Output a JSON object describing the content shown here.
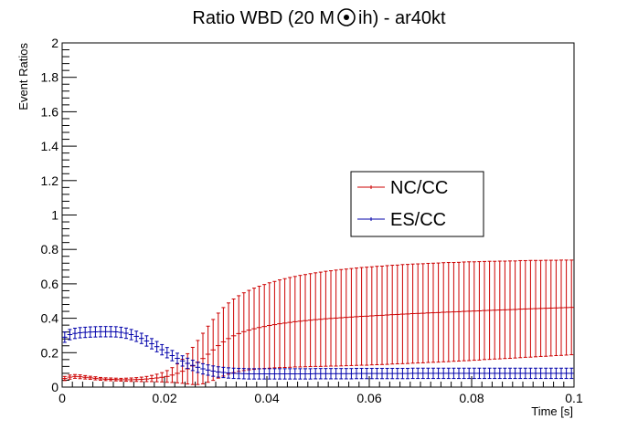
{
  "chart_data": {
    "type": "scatter",
    "title": "Ratio WBD (20 M",
    "title_symbol": "sun-symbol",
    "title_suffix": "ih) - ar40kt",
    "xlabel": "Time [s]",
    "ylabel": "Event Ratios",
    "xlim": [
      0,
      0.1
    ],
    "ylim": [
      0,
      2
    ],
    "x_ticks": [
      "0",
      "0.02",
      "0.04",
      "0.06",
      "0.08",
      "0.1"
    ],
    "y_ticks": [
      "0",
      "0.2",
      "0.4",
      "0.6",
      "0.8",
      "1",
      "1.2",
      "1.4",
      "1.6",
      "1.8",
      "2"
    ],
    "grid": false,
    "legend_position": "center-right",
    "series": [
      {
        "name": "NC/CC",
        "color": "#cc0000",
        "x": [
          0.0005,
          0.0015,
          0.0025,
          0.0035,
          0.0045,
          0.0055,
          0.0065,
          0.0075,
          0.0085,
          0.0095,
          0.0105,
          0.0115,
          0.0125,
          0.0135,
          0.0145,
          0.0155,
          0.0165,
          0.0175,
          0.0185,
          0.0195,
          0.0205,
          0.0215,
          0.0225,
          0.0235,
          0.0245,
          0.0255,
          0.0265,
          0.0275,
          0.0285,
          0.0295,
          0.0305,
          0.0315,
          0.0325,
          0.0335,
          0.0345,
          0.0355,
          0.0365,
          0.0375,
          0.0385,
          0.0395,
          0.0405,
          0.0415,
          0.0425,
          0.0435,
          0.0445,
          0.0455,
          0.0465,
          0.0475,
          0.0485,
          0.0495,
          0.0505,
          0.0515,
          0.0525,
          0.0535,
          0.0545,
          0.0555,
          0.0565,
          0.0575,
          0.0585,
          0.0595,
          0.0605,
          0.0615,
          0.0625,
          0.0635,
          0.0645,
          0.0655,
          0.0665,
          0.0675,
          0.0685,
          0.0695,
          0.0705,
          0.0715,
          0.0725,
          0.0735,
          0.0745,
          0.0755,
          0.0765,
          0.0775,
          0.0785,
          0.0795,
          0.0805,
          0.0815,
          0.0825,
          0.0835,
          0.0845,
          0.0855,
          0.0865,
          0.0875,
          0.0885,
          0.0895,
          0.0905,
          0.0915,
          0.0925,
          0.0935,
          0.0945,
          0.0955,
          0.0965,
          0.0975,
          0.0985,
          0.0995
        ],
        "y": [
          0.05,
          0.058,
          0.062,
          0.06,
          0.057,
          0.054,
          0.051,
          0.048,
          0.046,
          0.045,
          0.044,
          0.043,
          0.043,
          0.043,
          0.044,
          0.045,
          0.047,
          0.05,
          0.053,
          0.057,
          0.062,
          0.07,
          0.08,
          0.092,
          0.106,
          0.123,
          0.143,
          0.166,
          0.191,
          0.216,
          0.241,
          0.263,
          0.282,
          0.298,
          0.311,
          0.322,
          0.331,
          0.339,
          0.346,
          0.352,
          0.358,
          0.363,
          0.368,
          0.372,
          0.376,
          0.38,
          0.383,
          0.386,
          0.389,
          0.392,
          0.394,
          0.397,
          0.399,
          0.401,
          0.403,
          0.405,
          0.407,
          0.409,
          0.411,
          0.412,
          0.414,
          0.416,
          0.417,
          0.419,
          0.421,
          0.422,
          0.424,
          0.425,
          0.427,
          0.428,
          0.429,
          0.431,
          0.432,
          0.433,
          0.435,
          0.436,
          0.437,
          0.438,
          0.44,
          0.441,
          0.442,
          0.443,
          0.445,
          0.446,
          0.447,
          0.448,
          0.449,
          0.45,
          0.451,
          0.453,
          0.454,
          0.455,
          0.456,
          0.457,
          0.458,
          0.459,
          0.46,
          0.461,
          0.462,
          0.463
        ],
        "err": [
          0.012,
          0.012,
          0.011,
          0.011,
          0.01,
          0.009,
          0.009,
          0.008,
          0.008,
          0.008,
          0.008,
          0.008,
          0.009,
          0.01,
          0.011,
          0.013,
          0.015,
          0.018,
          0.022,
          0.027,
          0.034,
          0.043,
          0.055,
          0.07,
          0.088,
          0.108,
          0.128,
          0.147,
          0.163,
          0.177,
          0.189,
          0.199,
          0.207,
          0.214,
          0.22,
          0.226,
          0.231,
          0.236,
          0.24,
          0.244,
          0.248,
          0.251,
          0.255,
          0.258,
          0.261,
          0.263,
          0.266,
          0.268,
          0.27,
          0.272,
          0.274,
          0.276,
          0.277,
          0.279,
          0.28,
          0.281,
          0.282,
          0.283,
          0.284,
          0.285,
          0.285,
          0.286,
          0.286,
          0.287,
          0.287,
          0.287,
          0.288,
          0.288,
          0.288,
          0.288,
          0.288,
          0.288,
          0.288,
          0.288,
          0.288,
          0.288,
          0.287,
          0.287,
          0.287,
          0.287,
          0.286,
          0.286,
          0.285,
          0.285,
          0.284,
          0.284,
          0.283,
          0.283,
          0.282,
          0.282,
          0.281,
          0.281,
          0.28,
          0.279,
          0.279,
          0.278,
          0.277,
          0.277,
          0.276,
          0.275
        ]
      },
      {
        "name": "ES/CC",
        "color": "#0000aa",
        "x": [
          0.0005,
          0.0015,
          0.0025,
          0.0035,
          0.0045,
          0.0055,
          0.0065,
          0.0075,
          0.0085,
          0.0095,
          0.0105,
          0.0115,
          0.0125,
          0.0135,
          0.0145,
          0.0155,
          0.0165,
          0.0175,
          0.0185,
          0.0195,
          0.0205,
          0.0215,
          0.0225,
          0.0235,
          0.0245,
          0.0255,
          0.0265,
          0.0275,
          0.0285,
          0.0295,
          0.0305,
          0.0315,
          0.0325,
          0.0335,
          0.0345,
          0.0355,
          0.0365,
          0.0375,
          0.0385,
          0.0395,
          0.0405,
          0.0415,
          0.0425,
          0.0435,
          0.0445,
          0.0455,
          0.0465,
          0.0475,
          0.0485,
          0.0495,
          0.0505,
          0.0515,
          0.0525,
          0.0535,
          0.0545,
          0.0555,
          0.0565,
          0.0575,
          0.0585,
          0.0595,
          0.0605,
          0.0615,
          0.0625,
          0.0635,
          0.0645,
          0.0655,
          0.0665,
          0.0675,
          0.0685,
          0.0695,
          0.0705,
          0.0715,
          0.0725,
          0.0735,
          0.0745,
          0.0755,
          0.0765,
          0.0775,
          0.0785,
          0.0795,
          0.0805,
          0.0815,
          0.0825,
          0.0835,
          0.0845,
          0.0855,
          0.0865,
          0.0875,
          0.0885,
          0.0895,
          0.0905,
          0.0915,
          0.0925,
          0.0935,
          0.0945,
          0.0955,
          0.0965,
          0.0975,
          0.0985,
          0.0995
        ],
        "y": [
          0.29,
          0.305,
          0.312,
          0.316,
          0.318,
          0.32,
          0.321,
          0.322,
          0.322,
          0.322,
          0.321,
          0.318,
          0.313,
          0.305,
          0.295,
          0.283,
          0.268,
          0.252,
          0.235,
          0.217,
          0.2,
          0.183,
          0.167,
          0.152,
          0.138,
          0.126,
          0.115,
          0.106,
          0.099,
          0.093,
          0.088,
          0.085,
          0.082,
          0.08,
          0.079,
          0.078,
          0.077,
          0.077,
          0.077,
          0.077,
          0.077,
          0.077,
          0.077,
          0.077,
          0.077,
          0.077,
          0.077,
          0.077,
          0.077,
          0.078,
          0.078,
          0.078,
          0.078,
          0.078,
          0.078,
          0.078,
          0.078,
          0.079,
          0.079,
          0.079,
          0.079,
          0.079,
          0.079,
          0.079,
          0.079,
          0.079,
          0.079,
          0.079,
          0.08,
          0.08,
          0.08,
          0.08,
          0.08,
          0.08,
          0.08,
          0.08,
          0.08,
          0.08,
          0.08,
          0.08,
          0.08,
          0.08,
          0.08,
          0.08,
          0.08,
          0.08,
          0.08,
          0.08,
          0.08,
          0.08,
          0.08,
          0.08,
          0.08,
          0.08,
          0.08,
          0.08,
          0.08,
          0.08,
          0.08,
          0.08
        ],
        "err": [
          0.03,
          0.03,
          0.03,
          0.03,
          0.03,
          0.03,
          0.03,
          0.03,
          0.03,
          0.03,
          0.03,
          0.03,
          0.03,
          0.03,
          0.03,
          0.03,
          0.03,
          0.03,
          0.03,
          0.03,
          0.03,
          0.03,
          0.03,
          0.03,
          0.03,
          0.03,
          0.03,
          0.03,
          0.03,
          0.03,
          0.03,
          0.03,
          0.03,
          0.03,
          0.03,
          0.03,
          0.03,
          0.03,
          0.03,
          0.03,
          0.03,
          0.03,
          0.03,
          0.03,
          0.03,
          0.03,
          0.03,
          0.03,
          0.03,
          0.03,
          0.03,
          0.03,
          0.03,
          0.03,
          0.03,
          0.03,
          0.03,
          0.03,
          0.03,
          0.03,
          0.03,
          0.03,
          0.03,
          0.03,
          0.03,
          0.03,
          0.03,
          0.03,
          0.03,
          0.03,
          0.03,
          0.03,
          0.03,
          0.03,
          0.03,
          0.03,
          0.03,
          0.03,
          0.03,
          0.03,
          0.03,
          0.03,
          0.03,
          0.03,
          0.03,
          0.03,
          0.03,
          0.03,
          0.03,
          0.03,
          0.03,
          0.03,
          0.03,
          0.03,
          0.03,
          0.03,
          0.03,
          0.03,
          0.03,
          0.03
        ]
      }
    ],
    "legend": [
      {
        "label": "NC/CC",
        "color": "#cc0000"
      },
      {
        "label": "ES/CC",
        "color": "#0000aa"
      }
    ]
  }
}
